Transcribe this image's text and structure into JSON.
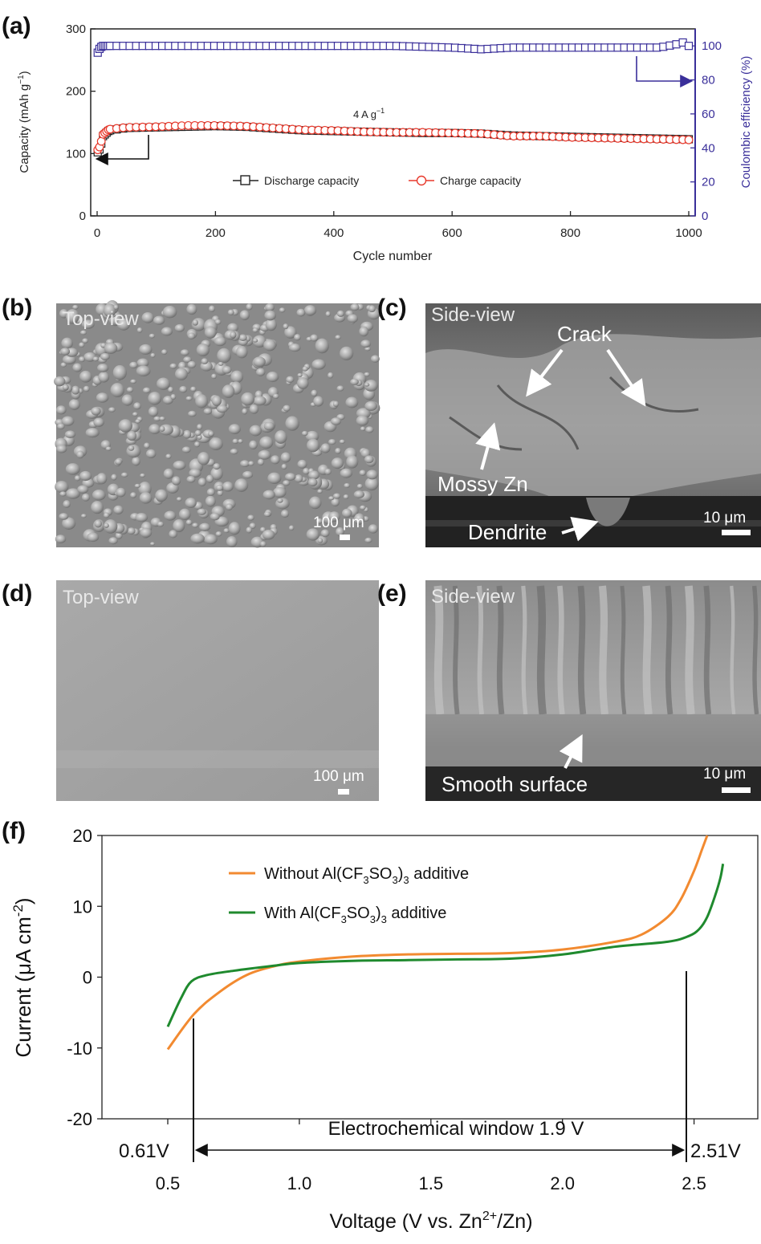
{
  "panel_letters": [
    "(a)",
    "(b)",
    "(c)",
    "(d)",
    "(e)",
    "(f)"
  ],
  "panel_a": {
    "y_ticks": [
      "0",
      "100",
      "200",
      "300"
    ],
    "y2_ticks": [
      "0",
      "20",
      "40",
      "60",
      "80",
      "100"
    ],
    "x_ticks": [
      "0",
      "200",
      "400",
      "600",
      "800",
      "1000"
    ],
    "ylabel": "Capacity (mAh g",
    "ylabel_sup": "−1",
    "ylabel_end": ")",
    "y2label": "Coulombic efficiency (%)",
    "xlabel": "Cycle number",
    "annotation_main": "4 A g",
    "annotation_sup": "−1",
    "legend": [
      "Discharge capacity",
      "Charge capacity"
    ]
  },
  "panel_b": {
    "view": "Top-view",
    "scale": "100 μm"
  },
  "panel_c": {
    "view": "Side-view",
    "scale": "10 μm",
    "labels": [
      "Crack",
      "Mossy Zn",
      "Dendrite"
    ]
  },
  "panel_d": {
    "view": "Top-view",
    "scale": "100 μm"
  },
  "panel_e": {
    "view": "Side-view",
    "scale": "10 μm",
    "labels": [
      "Smooth surface"
    ]
  },
  "panel_f": {
    "y_ticks": [
      "-20",
      "-10",
      "0",
      "10",
      "20"
    ],
    "x_ticks": [
      "0.5",
      "1.0",
      "1.5",
      "2.0",
      "2.5"
    ],
    "ylabel_main": "Current (μA cm",
    "ylabel_sup": "-2",
    "ylabel_end": ")",
    "xlabel_main": "Voltage (V vs. Zn",
    "xlabel_sup": "2+",
    "xlabel_end": "/Zn)",
    "legend_without": [
      "Without Al(CF",
      "3",
      "SO",
      "3",
      ")",
      "3",
      " additive"
    ],
    "legend_with": [
      "With Al(CF",
      "3",
      "SO",
      "3",
      ")",
      "3",
      " additive"
    ],
    "window_label": "Electrochemical window 1.9 V",
    "left_marker": "0.61V",
    "right_marker": "2.51V"
  },
  "colors": {
    "discharge": "#222222",
    "charge": "#e8392c",
    "coulombic": "#3a2f9a",
    "without": "#f28a30",
    "with": "#1f8a2e"
  },
  "chart_data": [
    {
      "type": "scatter",
      "xlabel": "Cycle number",
      "ylabel": "Capacity (mAh g−1)",
      "y2label": "Coulombic efficiency (%)",
      "xlim": [
        0,
        1000
      ],
      "ylim": [
        0,
        300
      ],
      "y2lim": [
        0,
        110
      ],
      "series": [
        {
          "name": "Discharge capacity",
          "axis": "left",
          "x": [
            1,
            5,
            10,
            20,
            50,
            100,
            150,
            200,
            250,
            300,
            350,
            400,
            450,
            500,
            550,
            600,
            650,
            700,
            750,
            800,
            850,
            900,
            950,
            1000
          ],
          "values": [
            102,
            108,
            128,
            137,
            141,
            142,
            143,
            144,
            143,
            140,
            137,
            136,
            135,
            134,
            133,
            133,
            132,
            129,
            128,
            127,
            126,
            125,
            124,
            123
          ]
        },
        {
          "name": "Charge capacity",
          "axis": "left",
          "x": [
            1,
            5,
            10,
            20,
            50,
            100,
            150,
            200,
            250,
            300,
            350,
            400,
            450,
            500,
            550,
            600,
            650,
            700,
            750,
            800,
            850,
            900,
            950,
            1000
          ],
          "values": [
            106,
            112,
            131,
            139,
            142,
            143,
            145,
            145,
            144,
            141,
            138,
            137,
            135,
            134,
            134,
            133,
            132,
            128,
            128,
            126,
            125,
            124,
            123,
            122
          ]
        },
        {
          "name": "Coulombic efficiency",
          "axis": "right",
          "x": [
            1,
            5,
            10,
            50,
            100,
            200,
            300,
            400,
            500,
            600,
            650,
            700,
            800,
            900,
            950,
            980,
            990,
            1000
          ],
          "values": [
            96,
            99,
            100,
            100,
            100,
            100,
            100,
            100,
            100,
            99,
            98,
            99,
            99,
            99,
            99,
            101,
            102,
            100
          ]
        }
      ],
      "annotations": [
        "4 A g−1"
      ]
    },
    {
      "type": "line",
      "xlabel": "Voltage (V vs. Zn2+/Zn)",
      "ylabel": "Current (μA cm-2)",
      "xlim": [
        0.25,
        2.72
      ],
      "ylim": [
        -20,
        20
      ],
      "series": [
        {
          "name": "Without Al(CF3SO3)3 additive",
          "x": [
            0.5,
            0.6,
            0.7,
            0.8,
            0.9,
            1.0,
            1.2,
            1.4,
            1.6,
            1.8,
            2.0,
            2.2,
            2.3,
            2.4,
            2.45,
            2.5,
            2.53,
            2.55
          ],
          "values": [
            -10.2,
            -5.2,
            -2.0,
            0.3,
            1.5,
            2.2,
            2.9,
            3.2,
            3.3,
            3.4,
            3.9,
            5.0,
            6.0,
            8.5,
            11.0,
            15.0,
            18.0,
            20.0
          ]
        },
        {
          "name": "With Al(CF3SO3)3 additive",
          "x": [
            0.5,
            0.55,
            0.59,
            0.65,
            0.75,
            0.9,
            1.0,
            1.2,
            1.4,
            1.6,
            1.8,
            2.0,
            2.2,
            2.4,
            2.48,
            2.52,
            2.55,
            2.58,
            2.6,
            2.61
          ],
          "values": [
            -7.0,
            -3.0,
            -0.6,
            0.3,
            0.9,
            1.6,
            2.0,
            2.3,
            2.4,
            2.5,
            2.6,
            3.2,
            4.3,
            5.0,
            5.8,
            6.8,
            8.5,
            11.5,
            14.0,
            16.0
          ]
        }
      ],
      "annotations": [
        "Electrochemical window 1.9 V",
        "0.61V",
        "2.51V"
      ]
    }
  ]
}
